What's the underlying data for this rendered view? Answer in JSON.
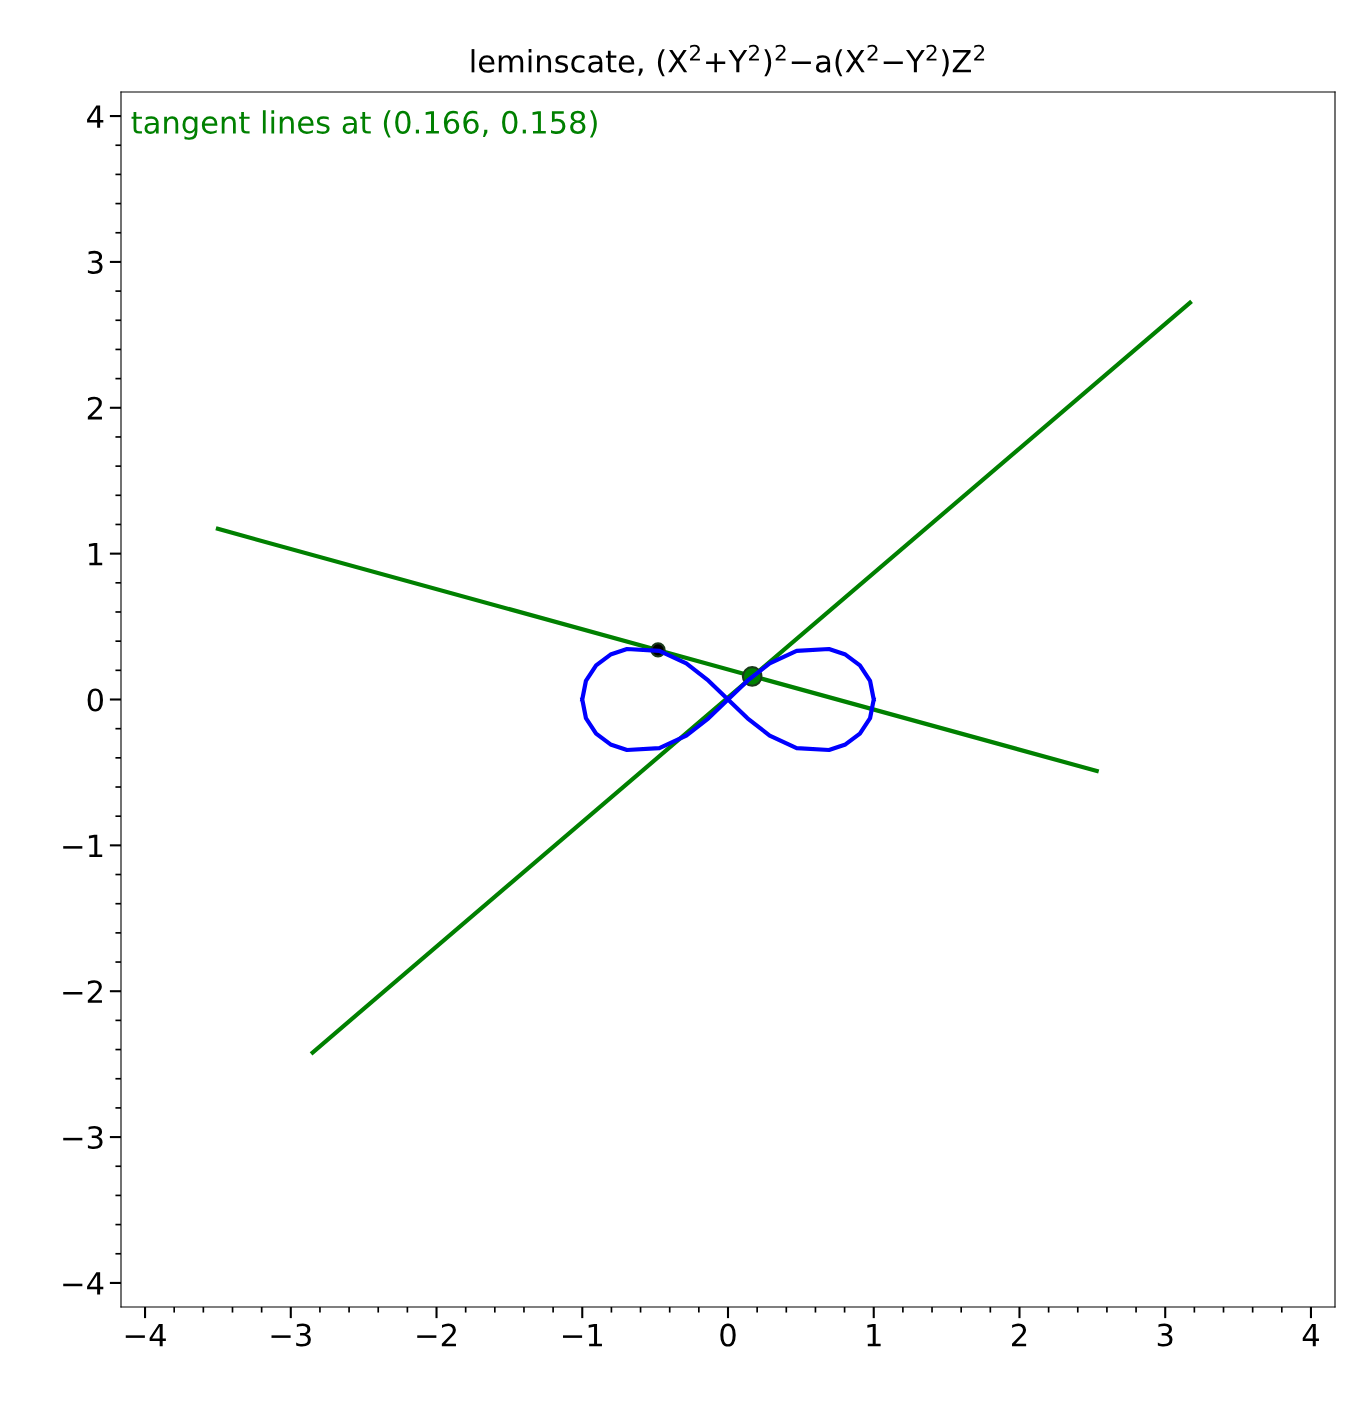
{
  "chart_data": {
    "type": "line",
    "title": "leminscate, (X$^{2}$+Y$^{2}$)$^{2}$−a(X$^{2}$−Y$^{2}$)Z$^{2}$",
    "annotations": [
      "tangent lines at (0.166, 0.158)"
    ],
    "xlim": [
      -4.165,
      4.165
    ],
    "ylim": [
      -4.165,
      4.165
    ],
    "xticks": [
      {
        "value": -4,
        "label": "−4"
      },
      {
        "value": -3,
        "label": "−3"
      },
      {
        "value": -2,
        "label": "−2"
      },
      {
        "value": -1,
        "label": "−1"
      },
      0,
      1,
      2,
      3,
      4
    ],
    "yticks": [
      {
        "value": -4,
        "label": "−4"
      },
      {
        "value": -3,
        "label": "−3"
      },
      {
        "value": -2,
        "label": "−2"
      },
      {
        "value": -1,
        "label": "−1"
      },
      0,
      1,
      2,
      3,
      4
    ],
    "grid": false,
    "legend": false,
    "marker": "none",
    "line_style": "solid",
    "series": [
      {
        "color": "#0000ff",
        "x": [
          -1,
          -0.975,
          -0.905,
          -0.806,
          -0.693,
          -0.471,
          -0.286,
          -0.134,
          0,
          0.134,
          0.286,
          0.471,
          0.693,
          0.806,
          0.905,
          0.975,
          1,
          null,
          -1,
          -0.975,
          -0.905,
          -0.806,
          -0.693,
          -0.471,
          -0.286,
          -0.134,
          0,
          0.134,
          0.286,
          0.471,
          0.693,
          0.806,
          0.905,
          0.975,
          1
        ],
        "values": [
          0,
          0.127,
          0.234,
          0.308,
          0.346,
          0.333,
          0.247,
          0.129,
          0,
          0.129,
          0.247,
          0.333,
          0.346,
          0.308,
          0.234,
          0.127,
          0,
          null,
          0,
          -0.127,
          -0.234,
          -0.308,
          -0.346,
          -0.333,
          -0.247,
          -0.129,
          0,
          -0.129,
          -0.247,
          -0.333,
          -0.346,
          -0.308,
          -0.234,
          -0.127,
          0
        ]
      },
      {
        "color": "#008000",
        "x": [
          -3.5,
          2.53
        ],
        "values": [
          1.17,
          -0.49
        ]
      },
      {
        "color": "#008000",
        "x": [
          -2.85,
          3.17
        ],
        "values": [
          -2.42,
          2.72
        ]
      },
      {
        "type": "scatter",
        "marker": "circle",
        "color": "#008000",
        "x": [
          0.166
        ],
        "values": [
          0.158
        ]
      },
      {
        "type": "scatter",
        "marker": "circle",
        "color": "#000000",
        "x": [
          -0.48
        ],
        "values": [
          0.34
        ]
      }
    ]
  }
}
